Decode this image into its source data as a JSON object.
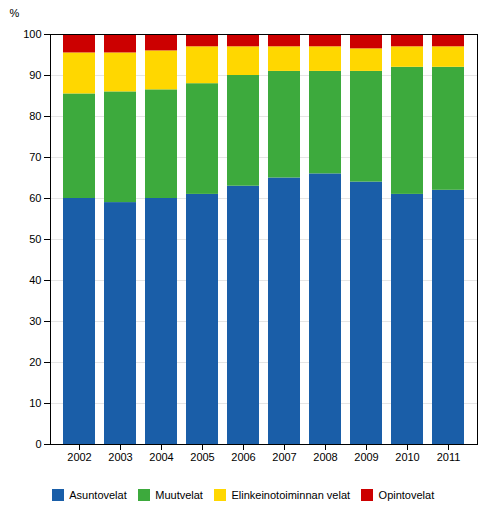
{
  "chart_data": {
    "type": "bar",
    "stacked": true,
    "ylabel": "%",
    "categories": [
      "2002",
      "2003",
      "2004",
      "2005",
      "2006",
      "2007",
      "2008",
      "2009",
      "2010",
      "2011"
    ],
    "series": [
      {
        "name": "Asuntovelat",
        "color": "#1A5EA8",
        "values": [
          60.0,
          59.0,
          60.0,
          61.0,
          63.0,
          65.0,
          66.0,
          64.0,
          61.0,
          62.0
        ]
      },
      {
        "name": "Muutvelat",
        "color": "#3DAA3D",
        "values": [
          25.5,
          27.0,
          26.5,
          27.0,
          27.0,
          26.0,
          25.0,
          27.0,
          31.0,
          30.0
        ]
      },
      {
        "name": "Elinkeinotoiminnan velat",
        "color": "#FFD700",
        "values": [
          10.0,
          9.5,
          9.5,
          9.0,
          7.0,
          6.0,
          6.0,
          5.5,
          5.0,
          5.0
        ]
      },
      {
        "name": "Opintovelat",
        "color": "#CC0000",
        "values": [
          4.5,
          4.5,
          4.0,
          3.0,
          3.0,
          3.0,
          3.0,
          3.5,
          3.0,
          3.0
        ]
      }
    ],
    "ylim": [
      0,
      100
    ],
    "yticks": [
      0,
      10,
      20,
      30,
      40,
      50,
      60,
      70,
      80,
      90,
      100
    ],
    "grid": true,
    "legend": "bottom"
  }
}
